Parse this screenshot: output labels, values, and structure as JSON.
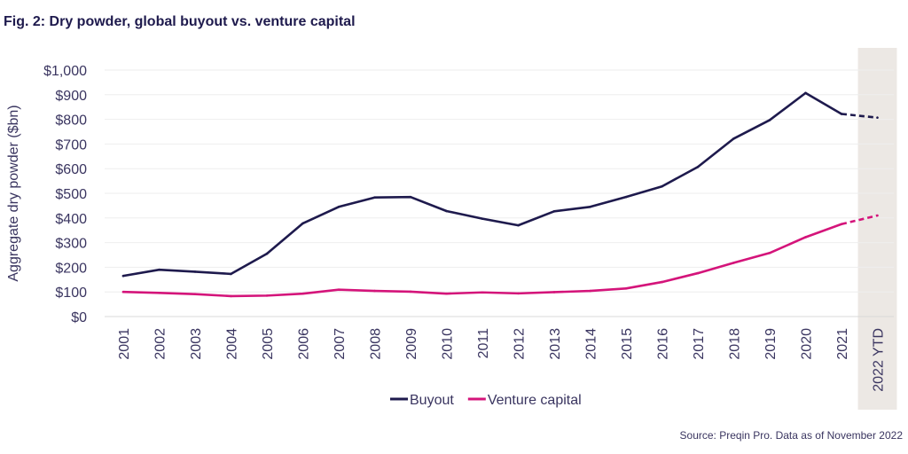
{
  "title": "Fig. 2: Dry powder, global buyout vs. venture capital",
  "source": "Source: Preqin Pro. Data as of November 2022",
  "chart_data": {
    "type": "line",
    "title": "Fig. 2: Dry powder, global buyout vs. venture capital",
    "xlabel": "",
    "ylabel": "Aggregate dry powder ($bn)",
    "ylim": [
      0,
      1000
    ],
    "yticks": [
      0,
      100,
      200,
      300,
      400,
      500,
      600,
      700,
      800,
      900,
      1000
    ],
    "ytick_labels": [
      "$0",
      "$100",
      "$200",
      "$300",
      "$400",
      "$500",
      "$600",
      "$700",
      "$800",
      "$900",
      "$1,000"
    ],
    "categories": [
      "2001",
      "2002",
      "2003",
      "2004",
      "2005",
      "2006",
      "2007",
      "2008",
      "2009",
      "2010",
      "2011",
      "2012",
      "2013",
      "2014",
      "2015",
      "2016",
      "2017",
      "2018",
      "2019",
      "2020",
      "2021",
      "2022 YTD"
    ],
    "highlighted_category": "2022 YTD",
    "dashed_from_category": "2021",
    "series": [
      {
        "name": "Buyout",
        "color": "#1e1a4d",
        "values": [
          165,
          190,
          182,
          173,
          255,
          378,
          445,
          483,
          485,
          428,
          397,
          370,
          427,
          445,
          485,
          528,
          607,
          722,
          797,
          907,
          822,
          807
        ]
      },
      {
        "name": "Venture capital",
        "color": "#d4147a",
        "values": [
          100,
          96,
          91,
          83,
          85,
          93,
          109,
          104,
          101,
          93,
          98,
          94,
          99,
          104,
          114,
          140,
          176,
          218,
          258,
          322,
          375,
          410
        ]
      }
    ],
    "legend_position": "bottom-center",
    "grid": true
  },
  "colors": {
    "text": "#3a3560",
    "highlight_band": "#ece8e4",
    "gridline": "#eeeeee"
  }
}
